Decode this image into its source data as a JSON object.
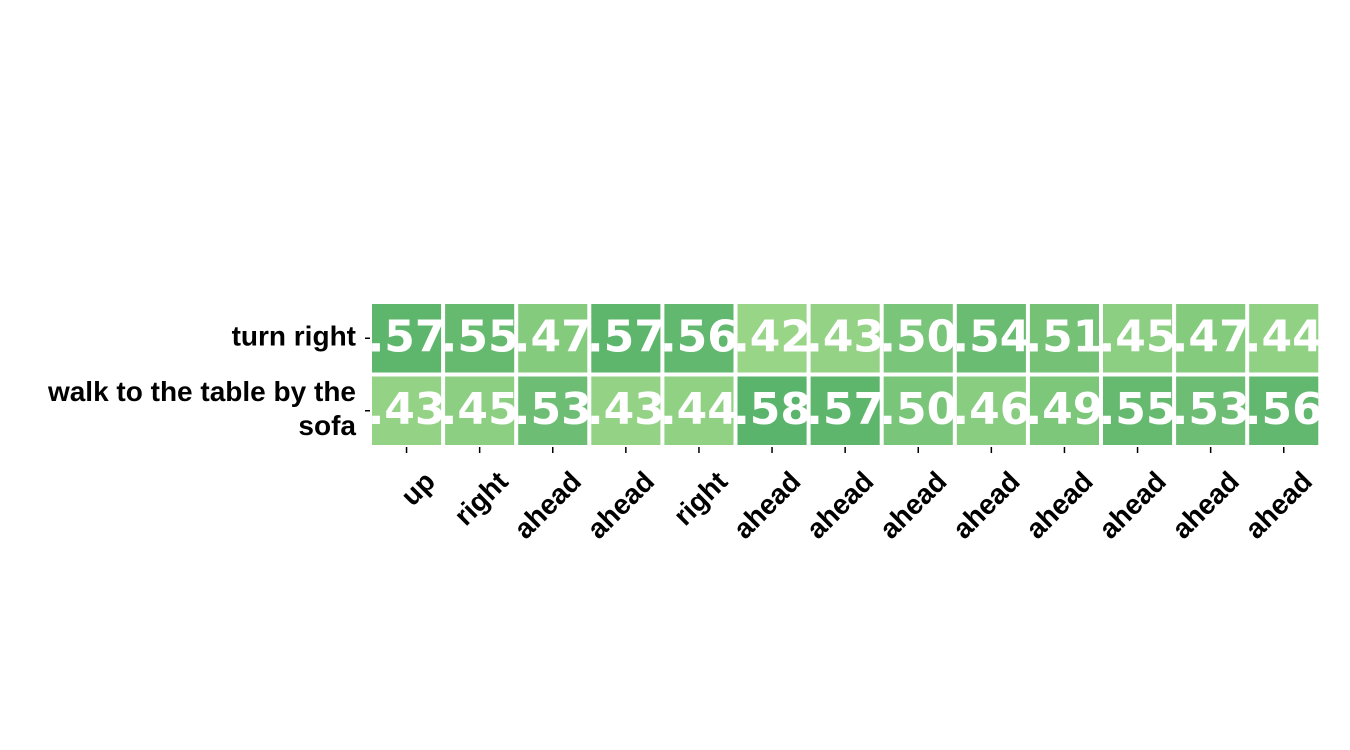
{
  "chart_data": {
    "type": "heatmap",
    "rows": [
      "turn right",
      "walk to the table by the sofa"
    ],
    "row_label_lines": [
      [
        "turn right"
      ],
      [
        "walk to the table by the",
        "sofa"
      ]
    ],
    "columns": [
      "up",
      "right",
      "ahead",
      "ahead",
      "right",
      "ahead",
      "ahead",
      "ahead",
      "ahead",
      "ahead",
      "ahead",
      "ahead",
      "ahead"
    ],
    "values": [
      [
        0.57,
        0.55,
        0.47,
        0.57,
        0.56,
        0.42,
        0.43,
        0.5,
        0.54,
        0.51,
        0.45,
        0.47,
        0.44
      ],
      [
        0.43,
        0.45,
        0.53,
        0.43,
        0.44,
        0.58,
        0.57,
        0.5,
        0.46,
        0.49,
        0.55,
        0.53,
        0.56
      ]
    ],
    "labels": [
      [
        ".57",
        ".55",
        ".47",
        ".57",
        ".56",
        ".42",
        ".43",
        ".50",
        ".54",
        ".51",
        ".45",
        ".47",
        ".44"
      ],
      [
        ".43",
        ".45",
        ".53",
        ".43",
        ".44",
        ".58",
        ".57",
        ".50",
        ".46",
        ".49",
        ".55",
        ".53",
        ".56"
      ]
    ],
    "colormap": {
      "low": "#98d587",
      "high": "#5ab46b"
    },
    "value_range": [
      0.42,
      0.58
    ]
  }
}
